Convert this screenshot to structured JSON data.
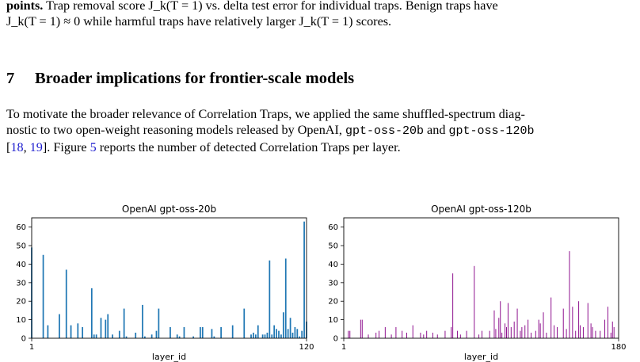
{
  "caption": {
    "line1_bold": "points.",
    "line1_rest": "Trap removal score J_k(T = 1) vs. delta test error for individual traps. Benign traps have",
    "line2": "J_k(T = 1) ≈ 0 while harmful traps have relatively larger J_k(T = 1) scores."
  },
  "section": {
    "number": "7",
    "title": "Broader implications for frontier-scale models"
  },
  "paragraph": {
    "part1": "To motivate the broader relevance of Correlation Traps, we applied the same shuffled-spectrum diag-",
    "part2": "nostic to two open-weight reasoning models released by OpenAI, ",
    "code1": "gpt-oss-20b",
    "part3": " and ",
    "code2": "gpt-oss-120b",
    "part4": "[",
    "ref1": "18",
    "part5": ", ",
    "ref2": "19",
    "part6": "]. Figure ",
    "fig_ref": "5",
    "part7": " reports the number of detected Correlation Traps per layer."
  },
  "chart_data": [
    {
      "type": "bar",
      "title": "OpenAI gpt-oss-20b",
      "xlabel": "layer_id",
      "ylabel": "",
      "xlim": [
        1,
        120
      ],
      "ylim": [
        0,
        65
      ],
      "xticks": [
        1,
        120
      ],
      "yticks": [
        0,
        10,
        20,
        30,
        40,
        50,
        60
      ],
      "color": "#1f77b4",
      "x": [
        1,
        6,
        8,
        13,
        16,
        18,
        21,
        23,
        27,
        28,
        29,
        31,
        33,
        34,
        36,
        39,
        41,
        42,
        46,
        49,
        50,
        53,
        55,
        56,
        61,
        64,
        65,
        67,
        71,
        74,
        75,
        79,
        80,
        83,
        88,
        93,
        96,
        97,
        98,
        99,
        101,
        102,
        103,
        104,
        105,
        106,
        107,
        108,
        109,
        110,
        111,
        112,
        113,
        114,
        115,
        116,
        117,
        118,
        119,
        120
      ],
      "values": [
        49,
        45,
        7,
        13,
        37,
        7,
        8,
        6,
        27,
        2,
        2,
        11,
        10,
        13,
        2,
        4,
        16,
        1,
        3,
        18,
        1,
        2,
        4,
        16,
        6,
        2,
        1,
        6,
        1,
        6,
        6,
        5,
        1,
        6,
        7,
        16,
        2,
        3,
        2,
        7,
        2,
        2,
        3,
        42,
        2,
        7,
        5,
        4,
        2,
        14,
        43,
        5,
        11,
        3,
        6,
        5,
        1,
        4,
        63,
        9
      ]
    },
    {
      "type": "bar",
      "title": "OpenAI gpt-oss-120b",
      "xlabel": "layer_id",
      "ylabel": "",
      "xlim": [
        1,
        180
      ],
      "ylim": [
        0,
        65
      ],
      "xticks": [
        1,
        180
      ],
      "yticks": [
        0,
        10,
        20,
        30,
        40,
        50,
        60
      ],
      "color": "#8b0a8b",
      "x": [
        4,
        5,
        12,
        13,
        17,
        22,
        24,
        28,
        32,
        35,
        39,
        42,
        46,
        51,
        53,
        55,
        59,
        62,
        67,
        71,
        72,
        75,
        77,
        81,
        86,
        89,
        91,
        96,
        99,
        100,
        102,
        103,
        104,
        106,
        107,
        108,
        110,
        112,
        114,
        116,
        117,
        119,
        121,
        123,
        126,
        128,
        129,
        131,
        133,
        136,
        138,
        140,
        144,
        146,
        148,
        150,
        152,
        154,
        155,
        157,
        160,
        162,
        163,
        165,
        168,
        171,
        173,
        175,
        176,
        177
      ],
      "values": [
        4,
        4,
        10,
        10,
        2,
        3,
        4,
        6,
        2,
        6,
        4,
        3,
        7,
        3,
        2,
        4,
        3,
        2,
        4,
        6,
        35,
        4,
        2,
        4,
        39,
        2,
        4,
        4,
        15,
        5,
        11,
        20,
        3,
        8,
        6,
        19,
        6,
        9,
        16,
        4,
        6,
        7,
        10,
        3,
        4,
        10,
        8,
        14,
        3,
        22,
        7,
        6,
        16,
        5,
        47,
        17,
        4,
        20,
        7,
        6,
        19,
        8,
        6,
        4,
        4,
        10,
        17,
        3,
        9,
        6
      ]
    }
  ]
}
